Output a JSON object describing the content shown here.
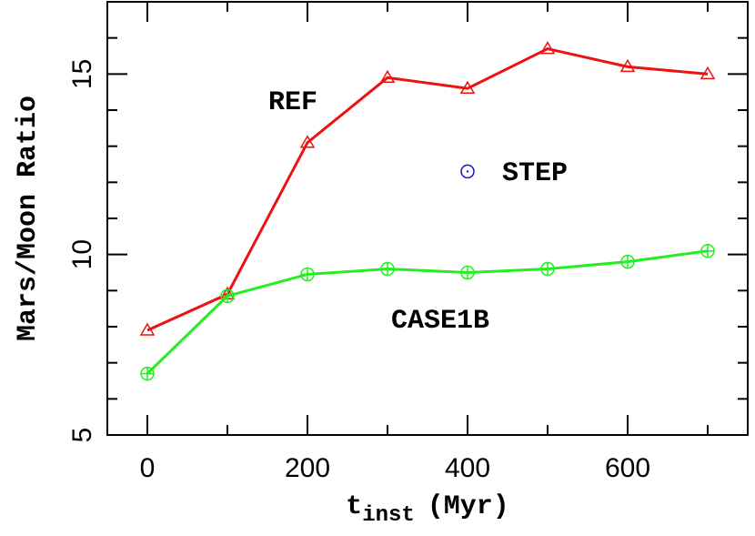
{
  "chart_data": {
    "type": "line",
    "x_label": {
      "main": "t",
      "sub": "inst",
      "unit": "(Myr)"
    },
    "y_label": "Mars/Moon Ratio",
    "x": [
      0,
      100,
      200,
      300,
      400,
      500,
      600,
      700
    ],
    "series": [
      {
        "name": "REF",
        "color": "#ee1111",
        "marker": "triangle",
        "values": [
          7.9,
          8.9,
          13.1,
          14.9,
          14.6,
          15.7,
          15.2,
          15.0
        ]
      },
      {
        "name": "CASE1B",
        "color": "#22ee22",
        "marker": "circle-plus",
        "values": [
          6.7,
          8.85,
          9.45,
          9.6,
          9.5,
          9.6,
          9.8,
          10.1
        ]
      },
      {
        "name": "STEP",
        "color": "#1111dd",
        "marker": "circle-dot",
        "x": [
          400
        ],
        "values": [
          12.3
        ]
      }
    ],
    "xlim": [
      -50,
      750
    ],
    "ylim": [
      5,
      17
    ],
    "xticks": [
      0,
      200,
      400,
      600
    ],
    "yticks": [
      5,
      10,
      15
    ],
    "xminorticks": [
      100,
      300,
      500,
      700
    ],
    "yminorticks": [
      6,
      7,
      8,
      9,
      11,
      12,
      13,
      14,
      16
    ]
  }
}
